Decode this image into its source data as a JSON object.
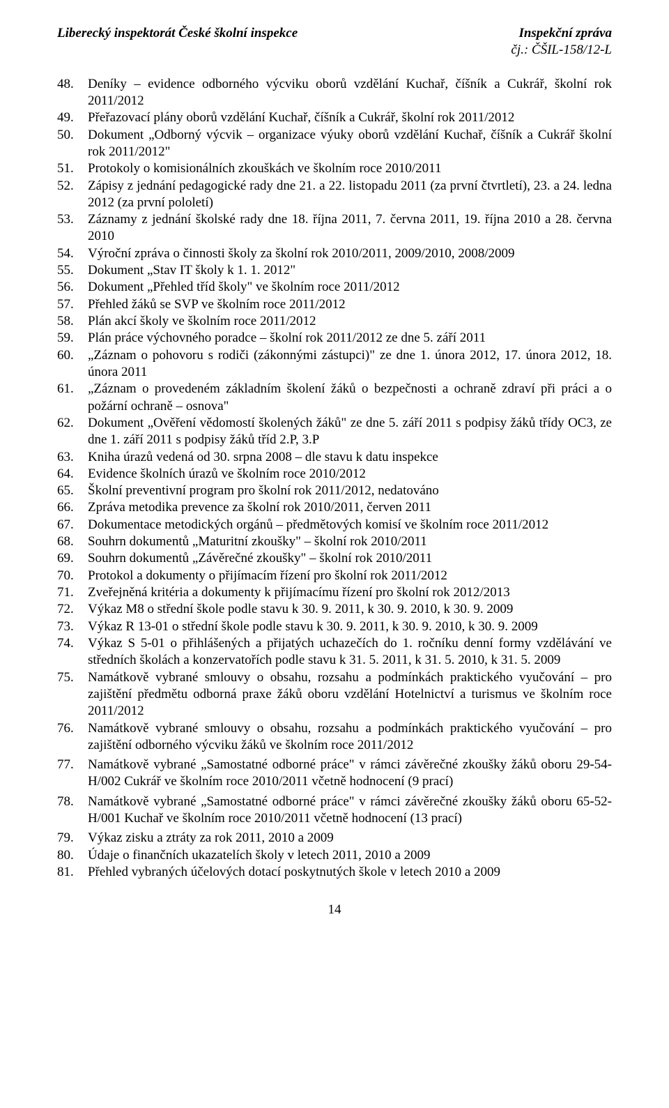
{
  "header": {
    "left": "Liberecký inspektorát České školní inspekce",
    "right_top": "Inspekční zpráva",
    "right_sub": "čj.: ČŠIL-158/12-L"
  },
  "items": [
    {
      "n": "48.",
      "t": "Deníky – evidence odborného výcviku oborů vzdělání Kuchař, číšník a Cukrář, školní rok 2011/2012"
    },
    {
      "n": "49.",
      "t": "Přeřazovací plány oborů vzdělání Kuchař, číšník a Cukrář, školní rok 2011/2012"
    },
    {
      "n": "50.",
      "t": "Dokument „Odborný výcvik – organizace výuky oborů vzdělání Kuchař, číšník a Cukrář školní rok 2011/2012\""
    },
    {
      "n": "51.",
      "t": "Protokoly o komisionálních zkouškách ve školním roce 2010/2011"
    },
    {
      "n": "52.",
      "t": "Zápisy z jednání pedagogické rady dne 21. a 22. listopadu 2011 (za první čtvrtletí), 23. a 24. ledna 2012 (za první pololetí)"
    },
    {
      "n": "53.",
      "t": "Záznamy z jednání školské rady dne 18. října 2011, 7. června 2011, 19. října 2010 a 28. června 2010"
    },
    {
      "n": "54.",
      "t": "Výroční zpráva o činnosti školy za školní rok 2010/2011, 2009/2010, 2008/2009"
    },
    {
      "n": "55.",
      "t": "Dokument „Stav IT školy k 1. 1. 2012\""
    },
    {
      "n": "56.",
      "t": "Dokument „Přehled tříd školy\" ve školním roce 2011/2012"
    },
    {
      "n": "57.",
      "t": "Přehled žáků se SVP ve školním roce 2011/2012"
    },
    {
      "n": "58.",
      "t": "Plán akcí školy ve školním roce 2011/2012"
    },
    {
      "n": "59.",
      "t": "Plán práce výchovného poradce – školní rok 2011/2012 ze dne 5. září 2011"
    },
    {
      "n": "60.",
      "t": "„Záznam o pohovoru s rodiči (zákonnými zástupci)\" ze dne 1. února 2012, 17. února 2012, 18. února 2011"
    },
    {
      "n": "61.",
      "t": "„Záznam o provedeném základním školení žáků o bezpečnosti a ochraně zdraví při práci a o požární ochraně – osnova\""
    },
    {
      "n": "62.",
      "t": "Dokument „Ověření vědomostí školených žáků\" ze dne 5. září 2011 s podpisy žáků třídy OC3, ze dne 1. září 2011 s podpisy žáků tříd 2.P, 3.P"
    },
    {
      "n": "63.",
      "t": "Kniha úrazů vedená od 30. srpna 2008 – dle stavu k datu inspekce"
    },
    {
      "n": "64.",
      "t": "Evidence školních úrazů ve školním roce 2010/2012"
    },
    {
      "n": "65.",
      "t": "Školní preventivní program pro školní rok 2011/2012, nedatováno"
    },
    {
      "n": "66.",
      "t": "Zpráva metodika prevence za školní rok 2010/2011, červen 2011"
    },
    {
      "n": "67.",
      "t": "Dokumentace metodických orgánů – předmětových komisí ve školním roce 2011/2012"
    },
    {
      "n": "68.",
      "t": "Souhrn dokumentů „Maturitní zkoušky\" – školní rok 2010/2011"
    },
    {
      "n": "69.",
      "t": "Souhrn dokumentů „Závěrečné zkoušky\" – školní rok 2010/2011"
    },
    {
      "n": "70.",
      "t": "Protokol a dokumenty o přijímacím řízení pro školní rok 2011/2012"
    },
    {
      "n": "71.",
      "t": "Zveřejněná kritéria a dokumenty k přijímacímu řízení pro školní rok 2012/2013"
    },
    {
      "n": "72.",
      "t": "Výkaz M8 o střední škole podle stavu k 30. 9. 2011, k 30. 9. 2010, k 30. 9. 2009"
    },
    {
      "n": "73.",
      "t": "Výkaz R 13-01 o střední škole podle stavu k 30. 9. 2011, k 30. 9. 2010, k 30. 9. 2009"
    },
    {
      "n": "74.",
      "t": "Výkaz S 5-01 o přihlášených a přijatých uchazečích do 1. ročníku denní formy vzdělávání ve středních školách a konzervatořích podle stavu k 31. 5. 2011, k 31. 5. 2010, k 31. 5. 2009"
    },
    {
      "n": "75.",
      "t": "Namátkově vybrané smlouvy o obsahu, rozsahu a podmínkách praktického vyučování – pro zajištění předmětu odborná praxe žáků oboru vzdělání Hotelnictví a turismus ve školním roce 2011/2012"
    },
    {
      "n": "76.",
      "t": "Namátkově vybrané smlouvy o obsahu, rozsahu a podmínkách praktického vyučování – pro zajištění odborného výcviku žáků ve školním roce 2011/2012"
    },
    {
      "n": "77.",
      "t": "Namátkově vybrané „Samostatné odborné práce\" v rámci závěrečné zkoušky žáků oboru 29-54-H/002 Cukrář ve školním roce 2010/2011 včetně hodnocení (9 prací)"
    },
    {
      "n": "78.",
      "t": "Namátkově vybrané „Samostatné odborné práce\" v rámci závěrečné zkoušky žáků oboru 65-52-H/001 Kuchař ve školním roce 2010/2011 včetně hodnocení (13 prací)"
    },
    {
      "n": "79.",
      "t": "Výkaz zisku a ztráty za rok 2011, 2010 a 2009"
    },
    {
      "n": "80.",
      "t": "Údaje o finančních ukazatelích školy v letech 2011, 2010 a 2009"
    },
    {
      "n": "81.",
      "t": "Přehled vybraných účelových dotací poskytnutých škole v letech 2010 a 2009"
    }
  ],
  "spaced_after": [
    "76.",
    "77.",
    "78."
  ],
  "page_number": "14"
}
